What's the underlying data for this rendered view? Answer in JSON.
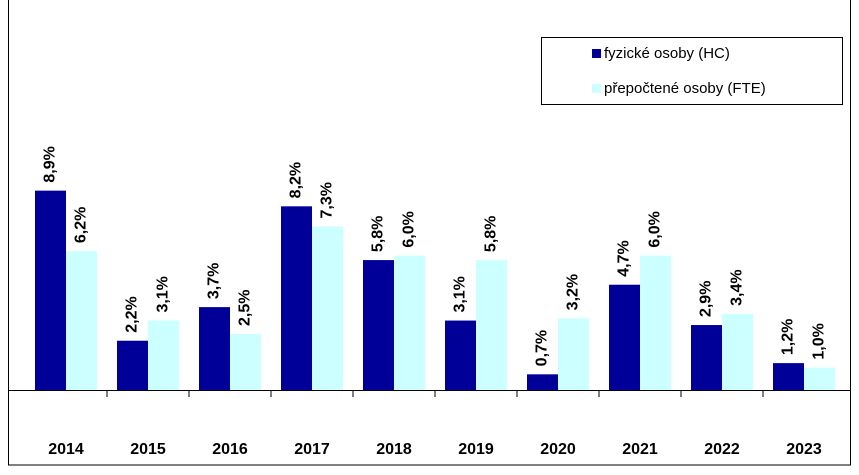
{
  "chart_data": {
    "type": "bar",
    "categories": [
      "2014",
      "2015",
      "2016",
      "2017",
      "2018",
      "2019",
      "2020",
      "2021",
      "2022",
      "2023"
    ],
    "series": [
      {
        "name": "fyzické osoby (HC)",
        "color": "#000099",
        "values": [
          8.9,
          2.2,
          3.7,
          8.2,
          5.8,
          3.1,
          0.7,
          4.7,
          2.9,
          1.2
        ],
        "value_labels": [
          "8,9%",
          "2,2%",
          "3,7%",
          "8,2%",
          "5,8%",
          "3,1%",
          "0,7%",
          "4,7%",
          "2,9%",
          "1,2%"
        ]
      },
      {
        "name": "přepočtené osoby (FTE)",
        "color": "#ccffff",
        "values": [
          6.2,
          3.1,
          2.5,
          7.3,
          6.0,
          5.8,
          3.2,
          6.0,
          3.4,
          1.0
        ],
        "value_labels": [
          "6,2%",
          "3,1%",
          "2,5%",
          "7,3%",
          "6,0%",
          "5,8%",
          "3,2%",
          "6,0%",
          "3,4%",
          "1,0%"
        ]
      }
    ],
    "ylim": [
      0,
      10
    ],
    "legend": "top-right"
  }
}
